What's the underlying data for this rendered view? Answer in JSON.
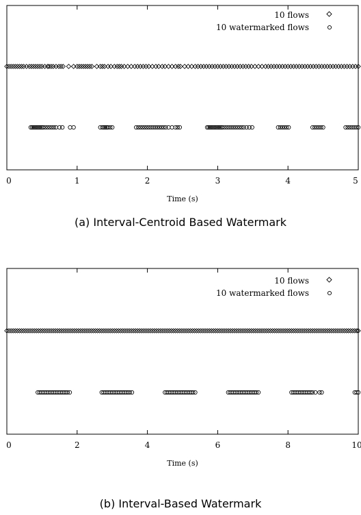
{
  "chart_data": [
    {
      "type": "scatter",
      "xlabel": "Time (s)",
      "ylabel": "",
      "xlim": [
        0,
        5
      ],
      "xticks": [
        "0",
        "1",
        "2",
        "3",
        "4",
        "5"
      ],
      "yticks": [],
      "grid": false,
      "legend_position": "top-right",
      "caption": "(a) Interval-Centroid Based Watermark",
      "series": [
        {
          "name": "10 flows",
          "marker": "diamond",
          "row": "upper",
          "x": [
            0.0,
            0.03,
            0.06,
            0.09,
            0.12,
            0.15,
            0.18,
            0.21,
            0.24,
            0.28,
            0.32,
            0.35,
            0.38,
            0.41,
            0.44,
            0.47,
            0.5,
            0.54,
            0.58,
            0.6,
            0.63,
            0.66,
            0.7,
            0.74,
            0.77,
            0.8,
            0.88,
            0.95,
            1.0,
            1.03,
            1.06,
            1.09,
            1.12,
            1.15,
            1.18,
            1.21,
            1.28,
            1.33,
            1.36,
            1.39,
            1.44,
            1.48,
            1.53,
            1.57,
            1.6,
            1.63,
            1.67,
            1.72,
            1.77,
            1.82,
            1.86,
            1.9,
            1.94,
            1.98,
            2.02,
            2.07,
            2.12,
            2.16,
            2.21,
            2.25,
            2.3,
            2.35,
            2.4,
            2.44,
            2.47,
            2.53,
            2.58,
            2.63,
            2.68,
            2.72,
            2.76,
            2.8,
            2.84,
            2.88,
            2.92,
            2.96,
            3.0,
            3.04,
            3.08,
            3.12,
            3.16,
            3.2,
            3.24,
            3.28,
            3.32,
            3.36,
            3.4,
            3.44,
            3.48,
            3.53,
            3.58,
            3.63,
            3.68,
            3.72,
            3.76,
            3.8,
            3.84,
            3.88,
            3.92,
            3.96,
            4.0,
            4.04,
            4.08,
            4.12,
            4.16,
            4.2,
            4.24,
            4.28,
            4.32,
            4.36,
            4.4,
            4.44,
            4.48,
            4.52,
            4.56,
            4.6,
            4.64,
            4.68,
            4.72,
            4.76,
            4.8,
            4.84,
            4.88,
            4.92,
            4.96,
            5.0
          ]
        },
        {
          "name": "10 watermarked flows",
          "marker": "circle",
          "row": "lower",
          "x": [
            0.34,
            0.36,
            0.38,
            0.4,
            0.42,
            0.44,
            0.46,
            0.48,
            0.5,
            0.52,
            0.55,
            0.58,
            0.61,
            0.64,
            0.67,
            0.7,
            0.75,
            0.79,
            0.9,
            0.95,
            1.33,
            1.36,
            1.38,
            1.4,
            1.42,
            1.44,
            1.47,
            1.5,
            1.84,
            1.87,
            1.9,
            1.93,
            1.96,
            1.99,
            2.02,
            2.05,
            2.08,
            2.11,
            2.14,
            2.17,
            2.2,
            2.23,
            2.26,
            2.3,
            2.35,
            2.4,
            2.43,
            2.46,
            2.85,
            2.87,
            2.89,
            2.91,
            2.93,
            2.95,
            2.97,
            2.99,
            3.01,
            3.03,
            3.05,
            3.07,
            3.1,
            3.13,
            3.16,
            3.19,
            3.22,
            3.25,
            3.28,
            3.31,
            3.34,
            3.37,
            3.41,
            3.45,
            3.49,
            3.86,
            3.89,
            3.92,
            3.95,
            3.98,
            4.01,
            4.35,
            4.38,
            4.41,
            4.44,
            4.47,
            4.5,
            4.82,
            4.85,
            4.88,
            4.91,
            4.94,
            4.97,
            5.0
          ]
        }
      ]
    },
    {
      "type": "scatter",
      "xlabel": "Time (s)",
      "ylabel": "",
      "xlim": [
        0,
        10
      ],
      "xticks": [
        "0",
        "2",
        "4",
        "6",
        "8",
        "10"
      ],
      "yticks": [],
      "grid": false,
      "legend_position": "top-right",
      "caption": "(b) Interval-Based Watermark",
      "series": [
        {
          "name": "10 flows",
          "marker": "diamond",
          "row": "upper",
          "x": [
            0.0,
            0.06,
            0.12,
            0.18,
            0.24,
            0.3,
            0.36,
            0.42,
            0.48,
            0.54,
            0.6,
            0.66,
            0.72,
            0.78,
            0.84,
            0.9,
            0.96,
            1.02,
            1.08,
            1.14,
            1.2,
            1.26,
            1.32,
            1.38,
            1.44,
            1.5,
            1.56,
            1.62,
            1.68,
            1.74,
            1.8,
            1.86,
            1.92,
            1.98,
            2.04,
            2.1,
            2.16,
            2.22,
            2.28,
            2.34,
            2.4,
            2.46,
            2.52,
            2.58,
            2.64,
            2.7,
            2.76,
            2.82,
            2.88,
            2.94,
            3.0,
            3.06,
            3.12,
            3.18,
            3.24,
            3.3,
            3.36,
            3.42,
            3.48,
            3.54,
            3.6,
            3.66,
            3.72,
            3.78,
            3.84,
            3.9,
            3.96,
            4.02,
            4.08,
            4.14,
            4.2,
            4.26,
            4.32,
            4.38,
            4.44,
            4.5,
            4.56,
            4.62,
            4.68,
            4.74,
            4.8,
            4.86,
            4.92,
            4.98,
            5.04,
            5.1,
            5.16,
            5.22,
            5.28,
            5.34,
            5.4,
            5.46,
            5.52,
            5.58,
            5.64,
            5.7,
            5.76,
            5.82,
            5.88,
            5.94,
            6.0,
            6.06,
            6.12,
            6.18,
            6.24,
            6.3,
            6.36,
            6.42,
            6.48,
            6.54,
            6.6,
            6.66,
            6.72,
            6.78,
            6.84,
            6.9,
            6.96,
            7.02,
            7.08,
            7.14,
            7.2,
            7.26,
            7.32,
            7.38,
            7.44,
            7.5,
            7.56,
            7.62,
            7.68,
            7.74,
            7.8,
            7.86,
            7.92,
            7.98,
            8.04,
            8.1,
            8.16,
            8.22,
            8.28,
            8.34,
            8.4,
            8.46,
            8.52,
            8.58,
            8.64,
            8.7,
            8.76,
            8.82,
            8.88,
            8.94,
            9.0,
            9.06,
            9.12,
            9.18,
            9.24,
            9.3,
            9.36,
            9.42,
            9.48,
            9.54,
            9.6,
            9.66,
            9.72,
            9.78,
            9.84,
            9.9,
            9.96,
            10.0
          ]
        },
        {
          "name": "10 watermarked flows",
          "marker": "circle",
          "row": "lower",
          "x": [
            0.88,
            0.93,
            0.98,
            1.03,
            1.08,
            1.13,
            1.18,
            1.23,
            1.28,
            1.33,
            1.38,
            1.43,
            1.48,
            1.53,
            1.58,
            1.63,
            1.68,
            1.73,
            1.79,
            2.7,
            2.75,
            2.8,
            2.85,
            2.9,
            2.95,
            3.0,
            3.05,
            3.1,
            3.15,
            3.2,
            3.25,
            3.3,
            3.35,
            3.4,
            3.45,
            3.5,
            3.56,
            4.5,
            4.55,
            4.6,
            4.65,
            4.7,
            4.75,
            4.8,
            4.85,
            4.9,
            4.95,
            5.0,
            5.05,
            5.1,
            5.15,
            5.2,
            5.25,
            5.3,
            5.36,
            6.3,
            6.35,
            6.4,
            6.45,
            6.5,
            6.55,
            6.6,
            6.65,
            6.7,
            6.75,
            6.8,
            6.85,
            6.9,
            6.95,
            7.0,
            7.05,
            7.1,
            7.16,
            8.1,
            8.15,
            8.2,
            8.25,
            8.3,
            8.35,
            8.4,
            8.45,
            8.5,
            8.55,
            8.6,
            8.65,
            8.7,
            8.78,
            8.9,
            8.96,
            9.9,
            9.95,
            10.0
          ]
        }
      ]
    }
  ]
}
